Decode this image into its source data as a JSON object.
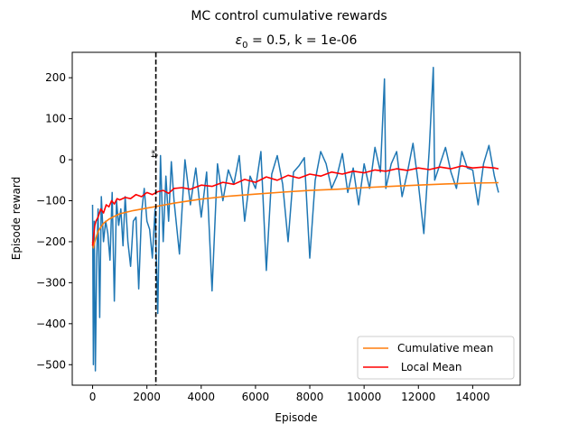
{
  "figure": {
    "suptitle": "MC control cumulative rewards"
  },
  "chart_data": {
    "type": "line",
    "title_prefix": "ε",
    "title_subscript": "0",
    "title_rest": " = 0.5, k = 1e-06",
    "xlabel": "Episode",
    "ylabel": "Episode reward",
    "xlim": [
      -750,
      15750
    ],
    "ylim": [
      -550,
      262
    ],
    "xticks": [
      0,
      2000,
      4000,
      6000,
      8000,
      10000,
      12000,
      14000
    ],
    "yticks": [
      -500,
      -400,
      -300,
      -200,
      -100,
      0,
      100,
      200
    ],
    "xtick_labels": [
      "0",
      "2000",
      "4000",
      "6000",
      "8000",
      "10000",
      "12000",
      "14000"
    ],
    "ytick_labels": [
      "−500",
      "−400",
      "−300",
      "−200",
      "−100",
      "0",
      "100",
      "200"
    ],
    "grid": false,
    "legend_position": "lower-right",
    "vline": {
      "x": 2330,
      "style": "dashed",
      "color": "#000000",
      "label": "t*"
    },
    "series": [
      {
        "kind": "raw",
        "color": "#1f77b4",
        "x": [
          0,
          30,
          60,
          100,
          150,
          200,
          260,
          320,
          400,
          480,
          560,
          640,
          720,
          800,
          880,
          960,
          1040,
          1120,
          1200,
          1300,
          1400,
          1500,
          1600,
          1700,
          1800,
          1900,
          2000,
          2100,
          2200,
          2300,
          2400,
          2500,
          2600,
          2700,
          2800,
          2900,
          3000,
          3200,
          3400,
          3600,
          3800,
          4000,
          4200,
          4400,
          4600,
          4800,
          5000,
          5200,
          5400,
          5600,
          5800,
          6000,
          6200,
          6400,
          6600,
          6800,
          7000,
          7200,
          7400,
          7600,
          7800,
          8000,
          8200,
          8400,
          8600,
          8800,
          9000,
          9200,
          9400,
          9600,
          9800,
          10000,
          10200,
          10400,
          10600,
          10750,
          10800,
          11000,
          11200,
          11400,
          11600,
          11800,
          12000,
          12200,
          12400,
          12550,
          12600,
          12800,
          13000,
          13200,
          13400,
          13600,
          13800,
          14000,
          14200,
          14400,
          14600,
          14800,
          14950
        ],
        "y": [
          -110,
          -500,
          -150,
          -515,
          -240,
          -120,
          -385,
          -90,
          -200,
          -150,
          -180,
          -245,
          -80,
          -345,
          -100,
          -160,
          -120,
          -210,
          -90,
          -200,
          -260,
          -150,
          -140,
          -315,
          -130,
          -70,
          -150,
          -170,
          -240,
          -120,
          -375,
          10,
          -200,
          -40,
          -150,
          -5,
          -100,
          -230,
          0,
          -110,
          -20,
          -140,
          -30,
          -320,
          -10,
          -100,
          -25,
          -60,
          10,
          -150,
          -40,
          -70,
          20,
          -270,
          -35,
          10,
          -60,
          -200,
          -30,
          -15,
          5,
          -240,
          -50,
          20,
          -10,
          -70,
          -40,
          15,
          -80,
          -20,
          -110,
          -10,
          -70,
          30,
          -30,
          197,
          -70,
          -10,
          20,
          -90,
          -30,
          40,
          -60,
          -180,
          25,
          225,
          -50,
          -10,
          30,
          -30,
          -70,
          20,
          -20,
          -25,
          -110,
          -10,
          35,
          -40,
          -80
        ]
      },
      {
        "kind": "cumulative",
        "name": "Cumulative mean",
        "color": "#ff7f0e",
        "x": [
          0,
          30,
          60,
          100,
          150,
          200,
          300,
          400,
          600,
          800,
          1000,
          1500,
          2000,
          2500,
          3000,
          4000,
          5000,
          6000,
          7000,
          8000,
          9000,
          10000,
          11000,
          12000,
          13000,
          14000,
          14950
        ],
        "y": [
          -200,
          -215,
          -205,
          -195,
          -185,
          -175,
          -165,
          -155,
          -145,
          -138,
          -132,
          -124,
          -118,
          -112,
          -106,
          -96,
          -89,
          -84,
          -79,
          -75,
          -72,
          -68,
          -65,
          -62,
          -59,
          -57,
          -56
        ]
      },
      {
        "kind": "local",
        "name": " Local Mean",
        "color": "#ff0000",
        "x": [
          0,
          40,
          80,
          120,
          160,
          200,
          300,
          400,
          500,
          600,
          700,
          800,
          900,
          1000,
          1200,
          1400,
          1600,
          1800,
          2000,
          2200,
          2400,
          2600,
          2800,
          3000,
          3300,
          3600,
          4000,
          4400,
          4800,
          5200,
          5600,
          6000,
          6400,
          6800,
          7200,
          7600,
          8000,
          8400,
          8800,
          9200,
          9600,
          10000,
          10400,
          10800,
          11200,
          11600,
          12000,
          12400,
          12800,
          13200,
          13600,
          14000,
          14400,
          14800,
          14950
        ],
        "y": [
          -210,
          -185,
          -160,
          -150,
          -145,
          -140,
          -120,
          -130,
          -110,
          -115,
          -100,
          -108,
          -95,
          -98,
          -92,
          -95,
          -85,
          -90,
          -80,
          -85,
          -78,
          -75,
          -82,
          -70,
          -68,
          -72,
          -62,
          -65,
          -55,
          -60,
          -48,
          -55,
          -42,
          -50,
          -38,
          -45,
          -35,
          -40,
          -30,
          -35,
          -28,
          -32,
          -25,
          -28,
          -22,
          -26,
          -20,
          -24,
          -18,
          -22,
          -15,
          -20,
          -18,
          -20,
          -22
        ]
      }
    ]
  }
}
